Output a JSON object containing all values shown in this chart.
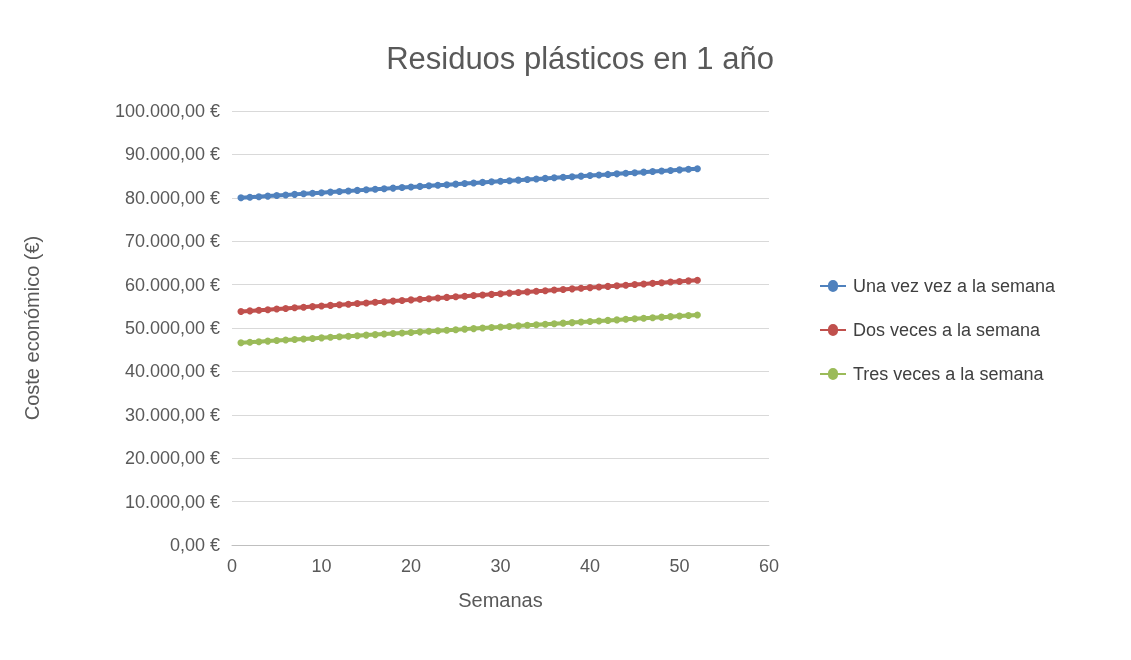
{
  "chart_data": {
    "type": "line",
    "title": "Residuos plásticos en 1 año",
    "xlabel": "Semanas",
    "ylabel": "Coste económico (€)",
    "x": [
      1,
      2,
      3,
      4,
      5,
      6,
      7,
      8,
      9,
      10,
      11,
      12,
      13,
      14,
      15,
      16,
      17,
      18,
      19,
      20,
      21,
      22,
      23,
      24,
      25,
      26,
      27,
      28,
      29,
      30,
      31,
      32,
      33,
      34,
      35,
      36,
      37,
      38,
      39,
      40,
      41,
      42,
      43,
      44,
      45,
      46,
      47,
      48,
      49,
      50,
      51,
      52
    ],
    "series": [
      {
        "name": "Una vez vez a la semana",
        "color": "#4f81bd",
        "values": [
          80000,
          80130,
          80260,
          80390,
          80530,
          80660,
          80790,
          80920,
          81050,
          81180,
          81310,
          81450,
          81580,
          81710,
          81840,
          81970,
          82100,
          82230,
          82370,
          82500,
          82630,
          82760,
          82890,
          83020,
          83150,
          83280,
          83420,
          83550,
          83680,
          83810,
          83940,
          84070,
          84200,
          84340,
          84470,
          84600,
          84730,
          84860,
          84990,
          85120,
          85250,
          85390,
          85520,
          85650,
          85780,
          85910,
          86040,
          86180,
          86310,
          86440,
          86570,
          86700
        ]
      },
      {
        "name": "Dos veces a la semana",
        "color": "#c0504d",
        "values": [
          53800,
          53940,
          54080,
          54220,
          54360,
          54510,
          54650,
          54790,
          54930,
          55070,
          55210,
          55350,
          55490,
          55640,
          55780,
          55920,
          56060,
          56200,
          56340,
          56480,
          56620,
          56760,
          56910,
          57050,
          57190,
          57330,
          57470,
          57610,
          57750,
          57890,
          58040,
          58180,
          58320,
          58460,
          58600,
          58740,
          58880,
          59020,
          59160,
          59310,
          59450,
          59590,
          59730,
          59870,
          60010,
          60150,
          60290,
          60440,
          60580,
          60720,
          60860,
          61000
        ]
      },
      {
        "name": "Tres veces a la semana",
        "color": "#9bbb59",
        "values": [
          46600,
          46730,
          46850,
          46980,
          47100,
          47230,
          47350,
          47480,
          47600,
          47730,
          47850,
          47980,
          48110,
          48230,
          48360,
          48480,
          48610,
          48730,
          48860,
          48980,
          49110,
          49240,
          49360,
          49490,
          49610,
          49740,
          49860,
          49990,
          50110,
          50240,
          50360,
          50490,
          50620,
          50740,
          50870,
          50990,
          51120,
          51240,
          51370,
          51490,
          51620,
          51750,
          51870,
          52000,
          52120,
          52250,
          52370,
          52500,
          52620,
          52750,
          52870,
          53000
        ]
      }
    ],
    "xlim": [
      0,
      60
    ],
    "xticks": [
      0,
      10,
      20,
      30,
      40,
      50,
      60
    ],
    "ylim": [
      0,
      100000
    ],
    "yticks": [
      {
        "value": 0,
        "label": "0,00 €"
      },
      {
        "value": 10000,
        "label": "10.000,00 €"
      },
      {
        "value": 20000,
        "label": "20.000,00 €"
      },
      {
        "value": 30000,
        "label": "30.000,00 €"
      },
      {
        "value": 40000,
        "label": "40.000,00 €"
      },
      {
        "value": 50000,
        "label": "50.000,00 €"
      },
      {
        "value": 60000,
        "label": "60.000,00 €"
      },
      {
        "value": 70000,
        "label": "70.000,00 €"
      },
      {
        "value": 80000,
        "label": "80.000,00 €"
      },
      {
        "value": 90000,
        "label": "90.000,00 €"
      },
      {
        "value": 100000,
        "label": "100.000,00 €"
      }
    ],
    "grid": "y",
    "legend": "right",
    "marker": "circle",
    "line_style": "solid"
  }
}
